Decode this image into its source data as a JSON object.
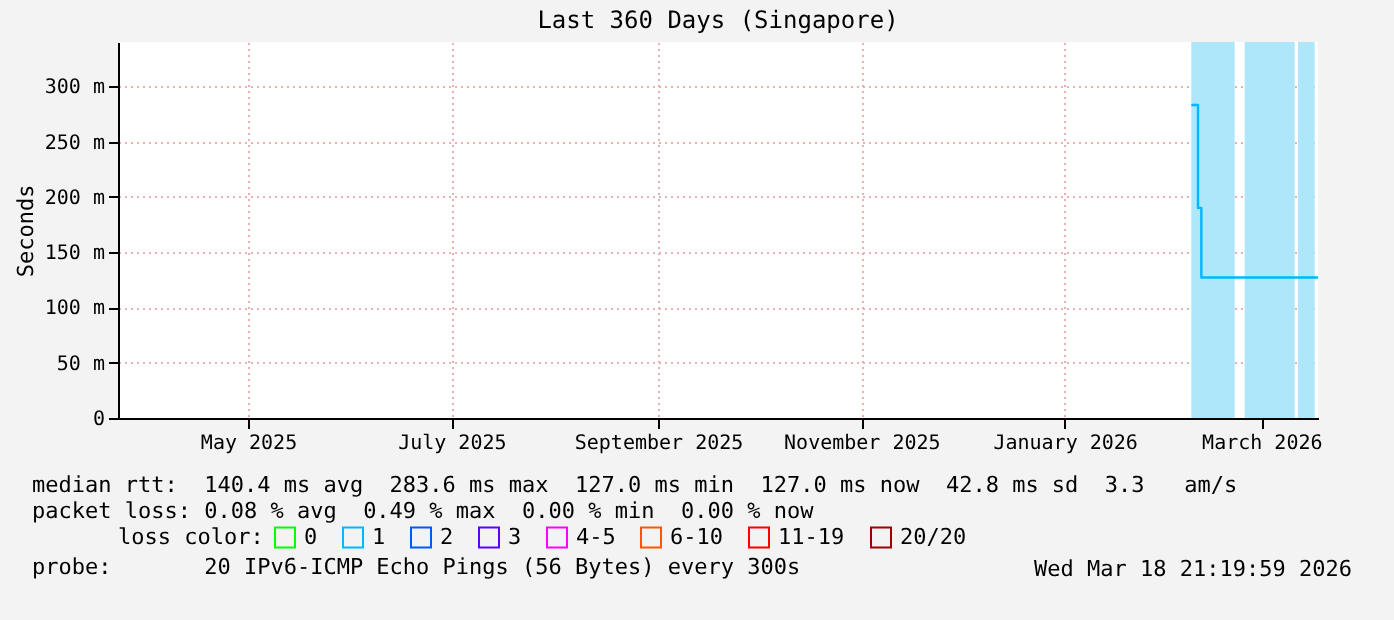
{
  "chart_data": {
    "type": "step",
    "title": "Last 360 Days (Singapore)",
    "ylabel": "Seconds",
    "x": [
      "2026-02-08",
      "2026-02-10",
      "2026-02-11",
      "2026-03-18"
    ],
    "series": [
      {
        "name": "0",
        "color": "#00ff00",
        "values": [
          null,
          null,
          null,
          null
        ]
      },
      {
        "name": "1",
        "color": "#00b8ff",
        "values": [
          283,
          190,
          127,
          127
        ]
      },
      {
        "name": "2",
        "color": "#0059ff",
        "values": [
          null,
          null,
          null,
          null
        ]
      },
      {
        "name": "3",
        "color": "#5e00ff",
        "values": [
          null,
          null,
          null,
          null
        ]
      },
      {
        "name": "4-5",
        "color": "#ff00ff",
        "values": [
          null,
          null,
          null,
          null
        ]
      },
      {
        "name": "6-10",
        "color": "#ff5500",
        "values": [
          null,
          null,
          null,
          null
        ]
      },
      {
        "name": "11-19",
        "color": "#ff0000",
        "values": [
          null,
          null,
          null,
          null
        ]
      },
      {
        "name": "20/20",
        "color": "#a10000",
        "values": [
          null,
          null,
          null,
          null
        ]
      }
    ],
    "legend_title": "loss color:",
    "legend": "bottom",
    "xlim": [
      "2025-03-23",
      "2026-03-18"
    ],
    "xticks": [
      {
        "value": "2025-05-01",
        "label": "May 2025"
      },
      {
        "value": "2025-07-01",
        "label": "July 2025"
      },
      {
        "value": "2025-09-01",
        "label": "September 2025"
      },
      {
        "value": "2025-11-01",
        "label": "November 2025"
      },
      {
        "value": "2026-01-01",
        "label": "January 2026"
      },
      {
        "value": "2026-03-01",
        "label": "March 2026"
      }
    ],
    "ylim": [
      0,
      340
    ],
    "yticks": [
      {
        "value": 0,
        "label": "0"
      },
      {
        "value": 50,
        "label": "50 m"
      },
      {
        "value": 100,
        "label": "100 m"
      },
      {
        "value": 150,
        "label": "150 m"
      },
      {
        "value": 200,
        "label": "200 m"
      },
      {
        "value": 250,
        "label": "250 m"
      },
      {
        "value": 300,
        "label": "300 m"
      }
    ],
    "bands": [
      {
        "axis": "x",
        "from": "2026-02-08",
        "to": "2026-02-21",
        "color": "#aee6fa"
      },
      {
        "axis": "x",
        "from": "2026-02-24",
        "to": "2026-03-11",
        "color": "#aee6fa"
      },
      {
        "axis": "x",
        "from": "2026-03-12",
        "to": "2026-03-17",
        "color": "#aee6fa"
      }
    ],
    "grid": true,
    "annotations": [
      "median rtt:  140.4 ms avg  283.6 ms max  127.0 ms min  127.0 ms now  42.8 ms sd  3.3   am/s",
      "packet loss: 0.08 % avg  0.49 % max  0.00 % min  0.00 % now",
      "probe:       20 IPv6-ICMP Echo Pings (56 Bytes) every 300s",
      "Wed Mar 18 21:19:59 2026"
    ]
  }
}
